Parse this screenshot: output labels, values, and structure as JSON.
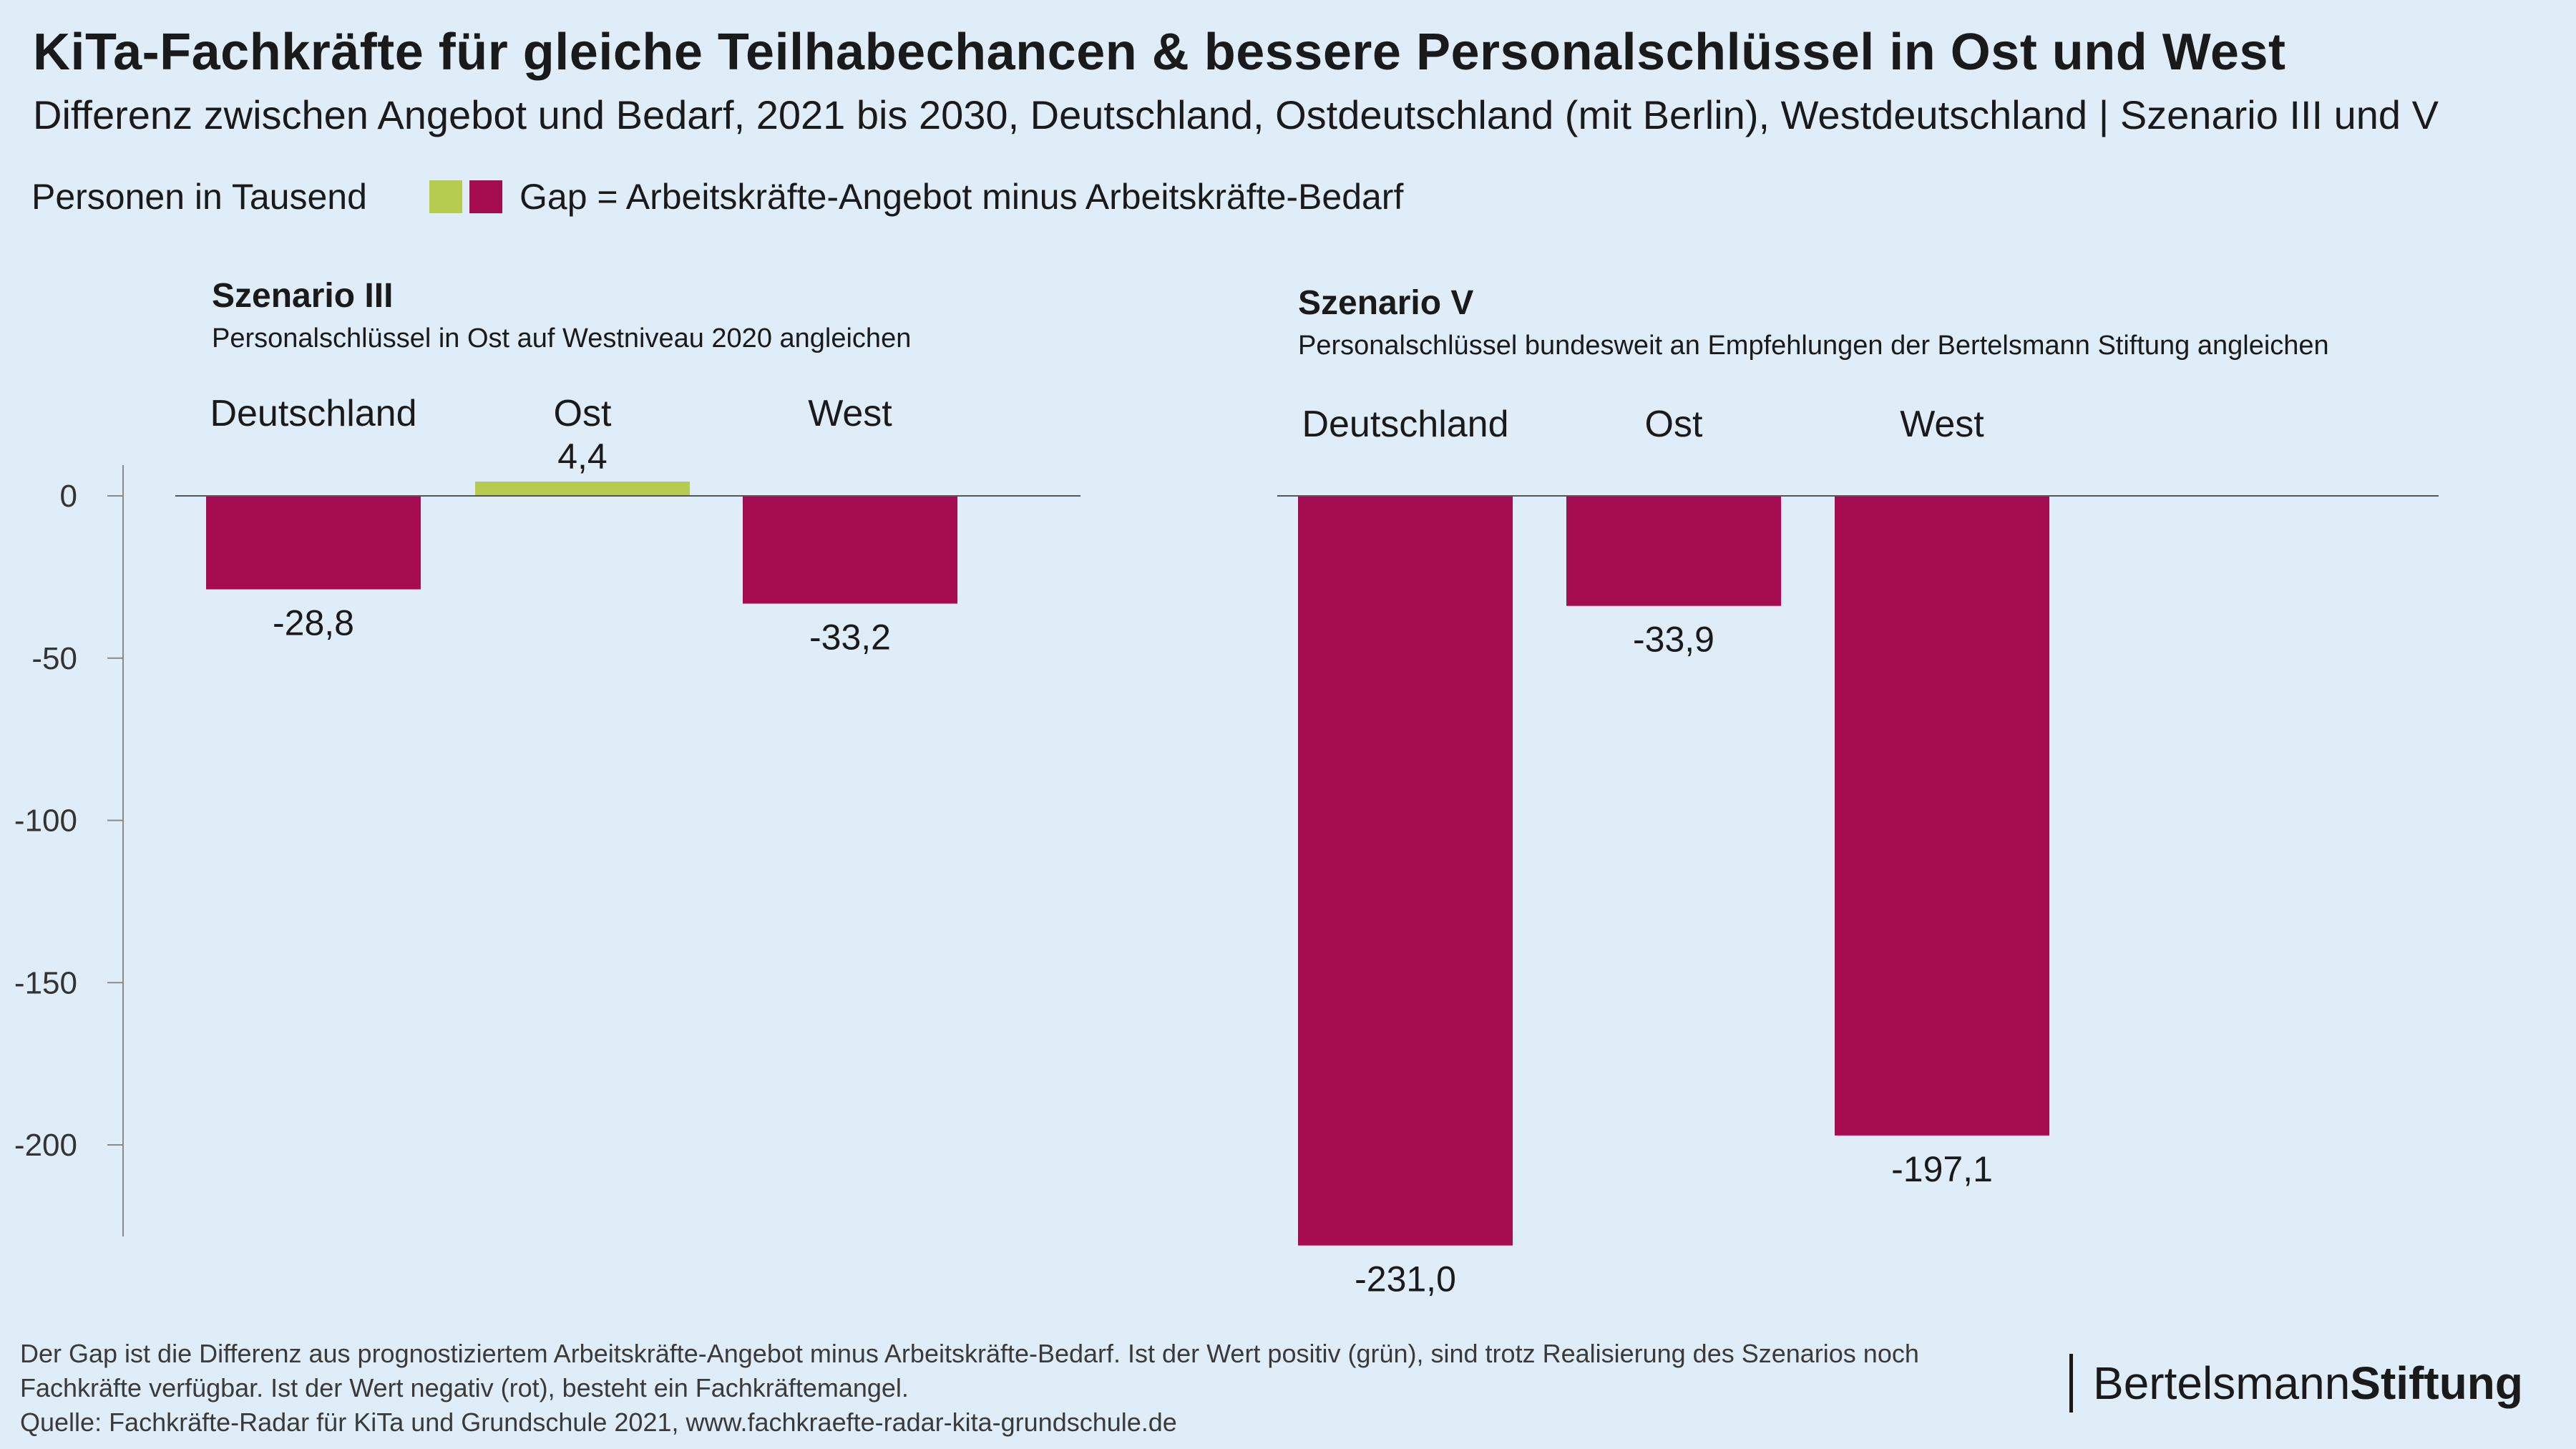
{
  "title": "KiTa-Fachkräfte für gleiche Teilhabechancen & bessere Personalschlüssel in Ost und West",
  "subtitle": "Differenz zwischen Angebot und Bedarf, 2021 bis 2030, Deutschland, Ostdeutschland (mit Berlin), Westdeutschland | Szenario III und V",
  "unit_label": "Personen in Tausend",
  "legend": {
    "label": "Gap = Arbeitskräfte-Angebot minus Arbeitskräfte-Bedarf",
    "positive_color": "#b5cc4e",
    "negative_color": "#a50d50"
  },
  "chart_data": [
    {
      "type": "bar",
      "title": "Szenario III",
      "subtitle": "Personalschlüssel in Ost auf Westniveau 2020 angleichen",
      "categories": [
        "Deutschland",
        "Ost",
        "West"
      ],
      "values": [
        -28.8,
        4.4,
        -33.2
      ],
      "value_labels": [
        "-28,8",
        "4,4",
        "-33,2"
      ],
      "ylim": [
        -230,
        10
      ],
      "yticks": [
        0,
        -50,
        -100,
        -150,
        -200
      ],
      "ytick_labels": [
        "0",
        "-50",
        "-100",
        "-150",
        "-200"
      ],
      "grid": false
    },
    {
      "type": "bar",
      "title": "Szenario V",
      "subtitle": "Personalschlüssel bundesweit an Empfehlungen der Bertelsmann Stiftung angleichen",
      "categories": [
        "Deutschland",
        "Ost",
        "West"
      ],
      "values": [
        -231.0,
        -33.9,
        -197.1
      ],
      "value_labels": [
        "-231,0",
        "-33,9",
        "-197,1"
      ],
      "ylim": [
        -230,
        10
      ],
      "grid": false
    }
  ],
  "footnote": "Der Gap ist die Differenz aus prognostiziertem Arbeitskräfte-Angebot minus Arbeitskräfte-Bedarf. Ist der Wert positiv (grün), sind trotz Realisierung des Szenarios noch Fachkräfte verfügbar. Ist der Wert negativ (rot), besteht ein Fachkräftemangel.",
  "source": "Quelle: Fachkräfte-Radar für KiTa und Grundschule 2021, www.fachkraefte-radar-kita-grundschule.de",
  "logo": {
    "light": "Bertelsmann",
    "bold": "Stiftung"
  }
}
